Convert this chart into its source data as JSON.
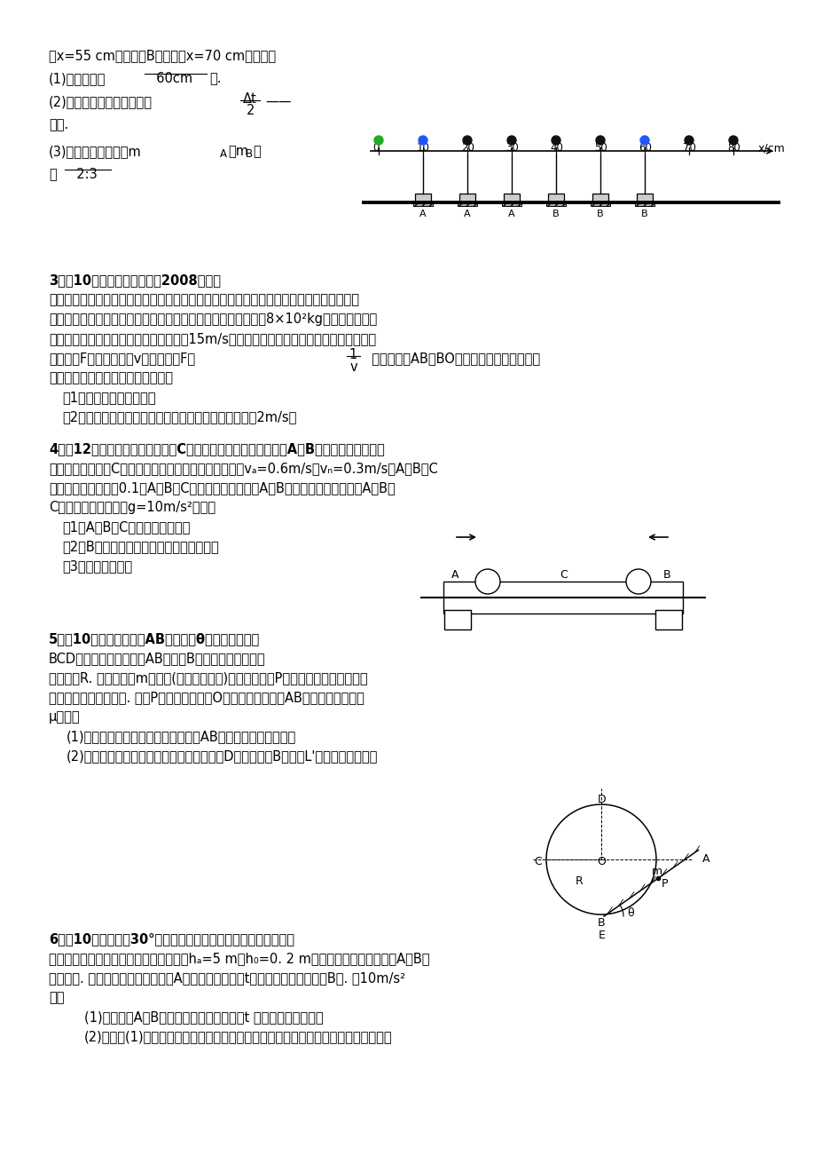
{
  "bg_color": "#ffffff",
  "text_color": "#000000",
  "line1": "过x=55 cm处，滑块B恰好通过x=70 cm处，问：",
  "line2_ans": "  60cm  ",
  "line3_a": "(2)碰撞发生在第一次闪光后",
  "line3_c": "时刻.",
  "line4_a": "(3)两滑块的质量之比",
  "line4_c": "等",
  "line5_ans": "  2:3  ",
  "q3_header": "3．（10分）「绿色奥运」是2008年北京",
  "q3_line1": "奥运会的三大理念之一，奥运会期间在各比赛场馆使用新型节能环保电动车，负责接送比赛",
  "q3_line2": "选手和运输器材，在检测某款电动车性能的某次实验中，质量为8×10²kg的电动车由静止",
  "q3_line3": "开始沿平直公路行驶，达到的最大速度为15m/s，利用传感器测得此过程中不同时刻电动车",
  "q3_line4": "的牢引力F与对应的速度v，并描绘出F－",
  "q3_line4c": "  图象（图中AB、BO均为直线），假设电动车",
  "q3_line5": "行驶中所受的阻力恒定，求此过程中",
  "q3_sub1": "（1）电动车的额定功率；",
  "q3_sub2": "（2）电动车由静止开始运动，经过多长时间，速度达到2m/s？",
  "q4_header": "4．（12分）如图所示，平板小车C静止在光滑的水平面上。现有A、B两个小物体（可看作",
  "q4_line1": "质点）分别从小车C的两端同时水平地滑上小车，初速度vₐ=0.6m/s，vₙ=0.3m/s，A、B与C",
  "q4_line2": "间的动摩擦因数都是0.1。A、B、C的质量都相同。最后A、B恰好相遇而未碰撞，且A、B、",
  "q4_line3": "C以共同的速度运动，g=10m/s²。求：",
  "q4_sub1": "（1）A、B、C共同运动的速度。",
  "q4_sub2": "（2）B物体相对于地向左运动的最大位移。",
  "q4_sub3": "（3）小车的长度。",
  "q5_header": "5．（10分）如图所示，AB是倾角为θ的粗糙直轨道，",
  "q5_line1": "BCD是光滑的圆弧轨道，AB恰好在B点与圆弧相切，圆弧",
  "q5_line2": "的半径为R. 一个质量为m的物体(可以看作质点)从直轨道上的P点由静止释放，结果它能",
  "q5_line3": "在两轨道间做往返运动. 已知P点与圆弧的圆心O等高，物体与轨道AB间的动摩擦因数为",
  "q5_line4": "μ，求：",
  "q5_sub1": "(1)物体做往返运动的整个过程中，在AB轨道上通过的总路程；",
  "q5_sub2": "(2)为了使物体能顺利达到圆弧的轨道最高点D，释放点距B的距离L'应满足什么条件。",
  "q6_header": "6．（10分）倾角为30°的足够长光滑斜面下端与一足够长光滑水",
  "q6_line1": "小圆弧过渡，斜面上距水平面高度分别为hₐ=5 m和h₀=0. 2 m的两点上，各固定一小球A和B，",
  "q6_line2": "如图所示. 某时刻由静止开始释放小A球，经过一段时间t后，同样由静止释放小B球. 卢10m/s²",
  "q6_line3": "则：",
  "q6_sub1": "(1)为了保证A、B两球不会在斜面上相碰，t 最长不能超过多少？",
  "q6_sub2": "(2)在满足(1)的情况下，为了保证两球在水平面上碰撞的次数不少于两次，两球的质量"
}
